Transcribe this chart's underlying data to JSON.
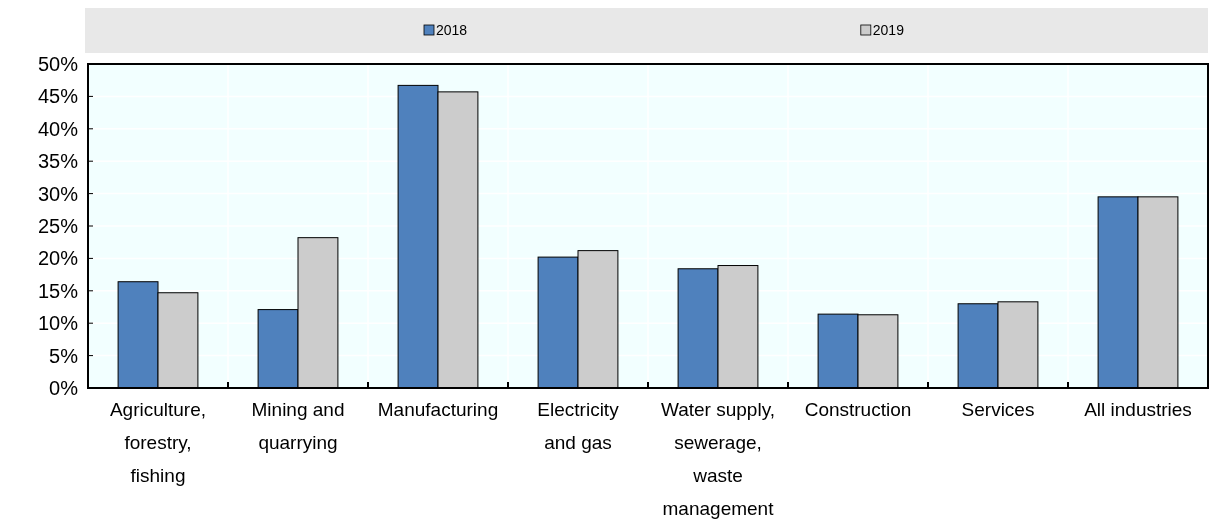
{
  "chart_data": {
    "type": "bar",
    "categories": [
      "Agriculture, forestry, fishing",
      "Mining and quarrying",
      "Manufacturing",
      "Electricity and gas",
      "Water supply, sewerage, waste management",
      "Construction",
      "Services",
      "All industries"
    ],
    "series": [
      {
        "name": "2018",
        "color": "#4f81bd",
        "values": [
          16.4,
          12.1,
          46.7,
          20.2,
          18.4,
          11.4,
          13.0,
          29.5
        ]
      },
      {
        "name": "2019",
        "color": "#cccccc",
        "values": [
          14.7,
          23.2,
          45.7,
          21.2,
          18.9,
          11.3,
          13.3,
          29.5
        ]
      }
    ],
    "ylim": [
      0,
      50
    ],
    "yticks": [
      {
        "value": 0,
        "label": "0%"
      },
      {
        "value": 5,
        "label": "5%"
      },
      {
        "value": 10,
        "label": "10%"
      },
      {
        "value": 15,
        "label": "15%"
      },
      {
        "value": 20,
        "label": "20%"
      },
      {
        "value": 25,
        "label": "25%"
      },
      {
        "value": 30,
        "label": "30%"
      },
      {
        "value": 35,
        "label": "35%"
      },
      {
        "value": 40,
        "label": "40%"
      },
      {
        "value": 45,
        "label": "45%"
      },
      {
        "value": 50,
        "label": "50%"
      }
    ],
    "grid": true,
    "legend": "top"
  }
}
